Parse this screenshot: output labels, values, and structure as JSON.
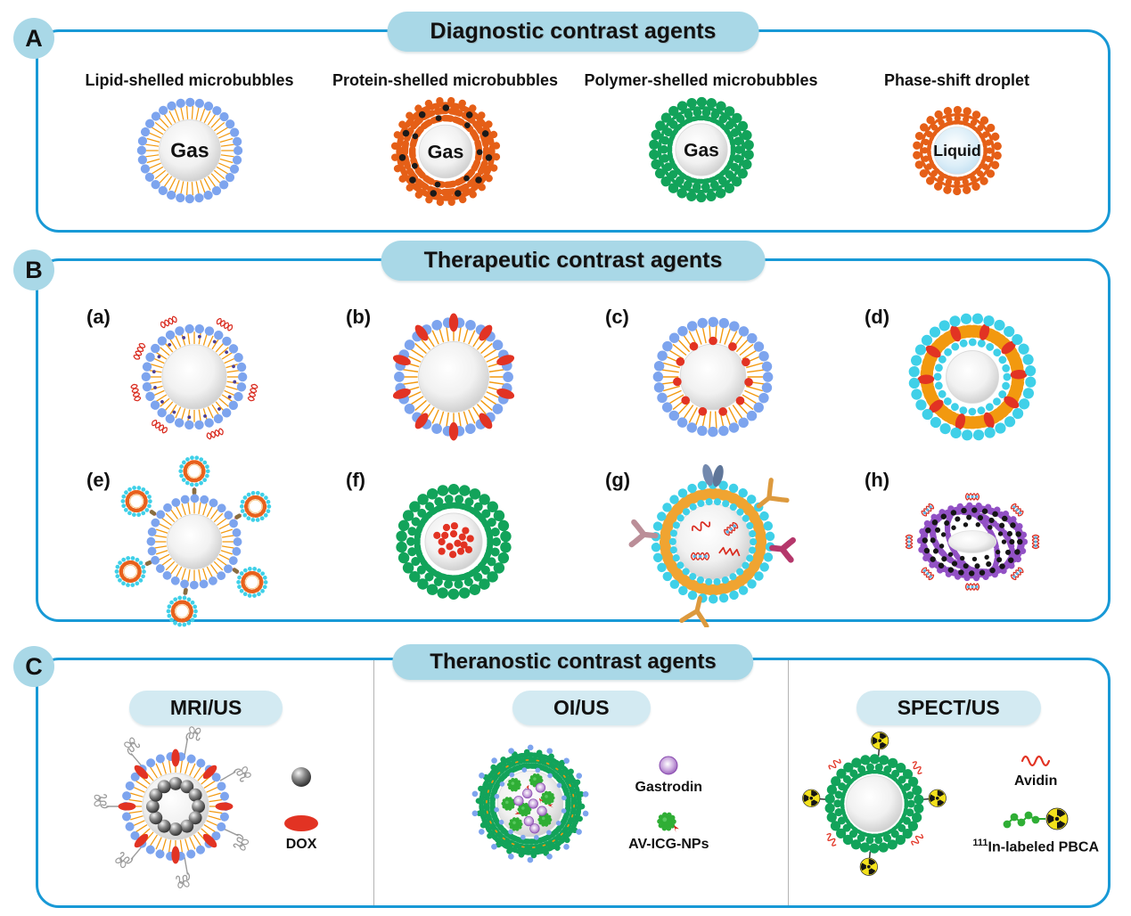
{
  "palette": {
    "panel_border": "#1899d6",
    "title_pill_bg": "#a9d8e7",
    "sub_pill_bg": "#d3eaf2",
    "lipid_blue": "#7da4ee",
    "tail_orange": "#f2990f",
    "protein_orange": "#e55f17",
    "polymer_green": "#12a35a",
    "cyan_lipid": "#3fd0e8",
    "drug_red": "#e23323",
    "purple_shell": "#9251c5",
    "divider_gray": "#b4b4b4"
  },
  "panel_a": {
    "badge": "A",
    "title": "Diagnostic contrast agents",
    "items": [
      {
        "label": "Lipid-shelled microbubbles",
        "core_label": "Gas"
      },
      {
        "label": "Protein-shelled microbubbles",
        "core_label": "Gas"
      },
      {
        "label": "Polymer-shelled microbubbles",
        "core_label": "Gas"
      },
      {
        "label": "Phase-shift droplet",
        "core_label": "Liquid"
      }
    ]
  },
  "panel_b": {
    "badge": "B",
    "title": "Therapeutic contrast agents",
    "items": [
      {
        "label": "(a)"
      },
      {
        "label": "(b)"
      },
      {
        "label": "(c)"
      },
      {
        "label": "(d)"
      },
      {
        "label": "(e)"
      },
      {
        "label": "(f)"
      },
      {
        "label": "(g)"
      },
      {
        "label": "(h)"
      }
    ]
  },
  "panel_c": {
    "badge": "C",
    "title": "Theranostic contrast agents",
    "sections": [
      {
        "title": "MRI/US",
        "legend": [
          {
            "name": "magnetic-nanoparticle",
            "label": ""
          },
          {
            "name": "dox",
            "label": "DOX"
          }
        ]
      },
      {
        "title": "OI/US",
        "legend": [
          {
            "name": "gastrodin",
            "label": "Gastrodin"
          },
          {
            "name": "av-icg-nps",
            "label": "AV-ICG-NPs"
          }
        ]
      },
      {
        "title": "SPECT/US",
        "legend": [
          {
            "name": "avidin",
            "label": "Avidin"
          },
          {
            "name": "in111-pbca",
            "label_sup": "111",
            "label": "In-labeled PBCA"
          }
        ]
      }
    ]
  }
}
